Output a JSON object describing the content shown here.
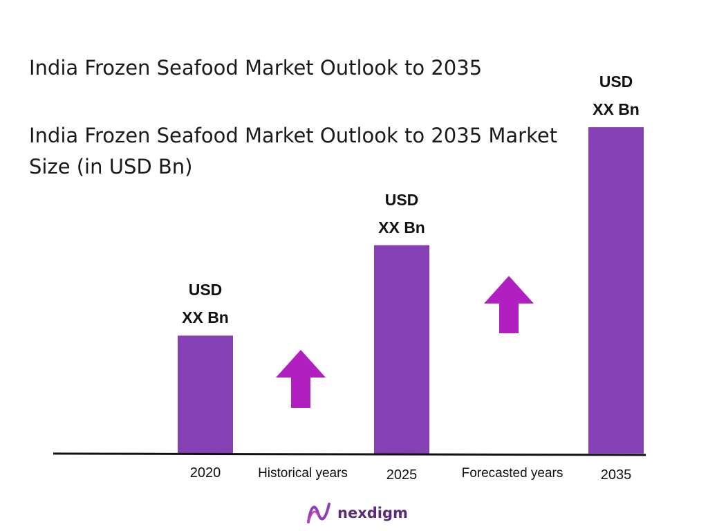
{
  "chart_data": {
    "type": "bar",
    "title": "India Frozen Seafood Market Outlook to 2035",
    "subtitle": "India Frozen Seafood Market Outlook to 2035 Market Size (in USD Bn)",
    "categories": [
      "2020",
      "2025",
      "2035"
    ],
    "values": [
      30,
      53,
      83
    ],
    "bar_labels": [
      {
        "line1": "USD",
        "line2": "XX Bn"
      },
      {
        "line1": "USD",
        "line2": "XX Bn"
      },
      {
        "line1": "USD",
        "line2": "XX Bn"
      }
    ],
    "period_labels": [
      "Historical years",
      "Forecasted years"
    ],
    "ylim": [
      0,
      83
    ],
    "grid": false,
    "bar_color": "#8540b5",
    "arrow_color": "#b21fc0"
  },
  "brand": {
    "name": "nexdigm",
    "logo_icon": "nexdigm-logo-icon",
    "color": "#5a2a7a"
  }
}
